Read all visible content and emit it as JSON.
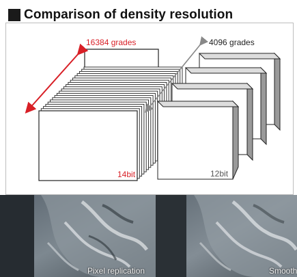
{
  "title": "Comparison of density resolution",
  "left_stack": {
    "grades_label": "16384 grades",
    "bit_label": "14bit",
    "accent_color": "#d81f26"
  },
  "right_stack": {
    "grades_label": "4096 grades",
    "bit_label": "12bit",
    "arrow_color": "#888888"
  },
  "photos": {
    "left_label": "Pixel replication",
    "right_label": "Smooth"
  }
}
